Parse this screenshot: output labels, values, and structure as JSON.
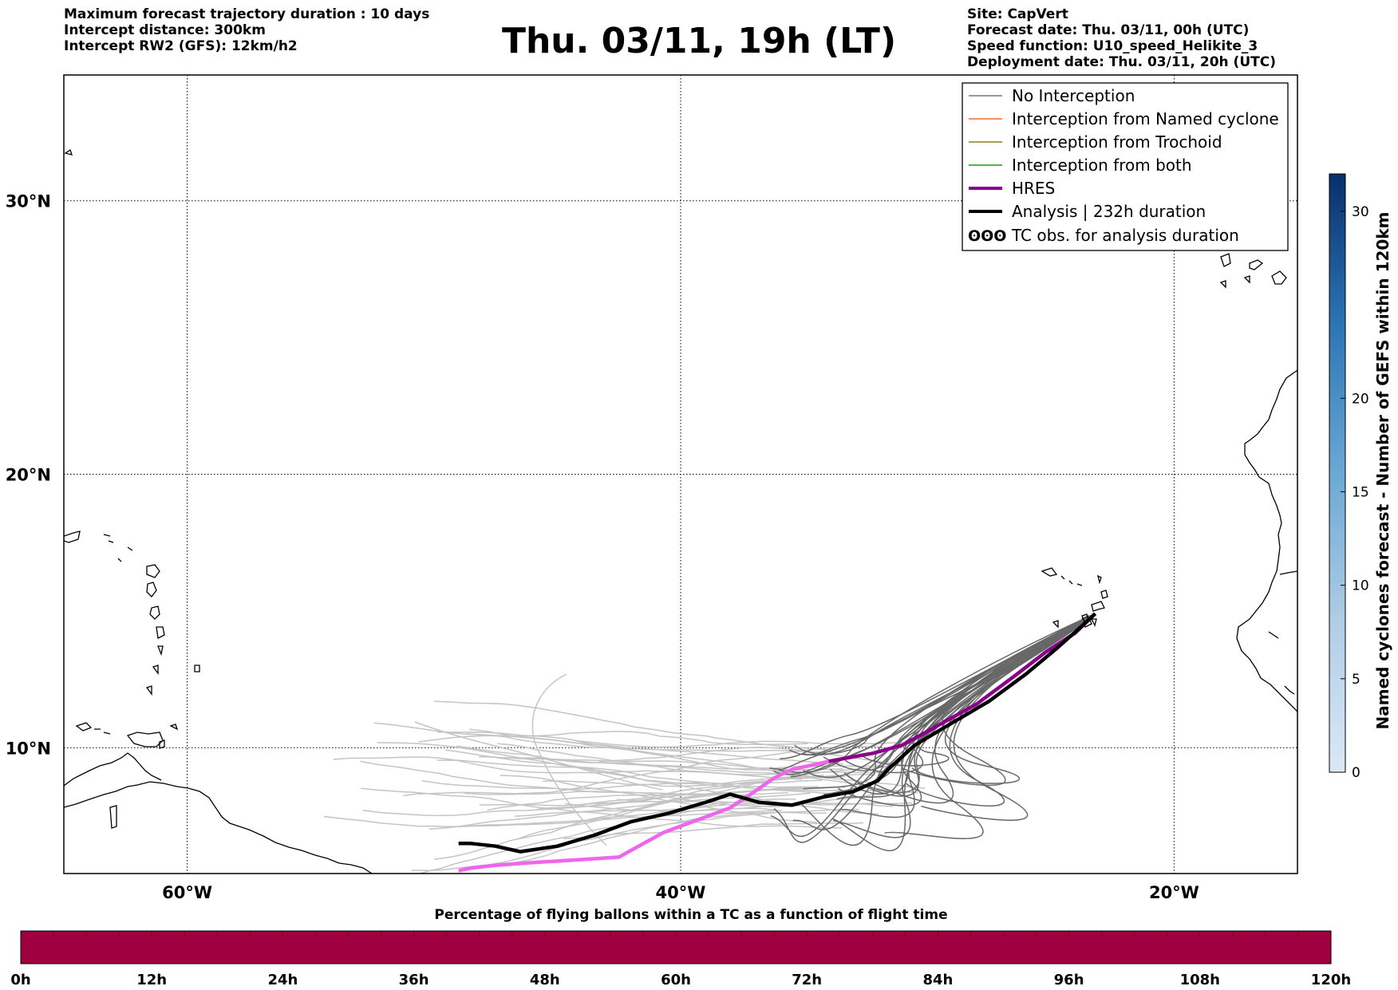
{
  "header": {
    "left": [
      "Maximum forecast trajectory duration : 10 days",
      "Intercept distance: 300km",
      "Intercept RW2 (GFS):  12km/h2"
    ],
    "title": "Thu. 03/11, 19h (LT)",
    "right": [
      "Site: CapVert",
      "Forecast date: Thu. 03/11, 00h (UTC)",
      "Speed function: U10_speed_Helikite_3",
      "Deployment date: Thu. 03/11, 20h (UTC)"
    ]
  },
  "map": {
    "lon_range": [
      -65,
      -15
    ],
    "lat_range": [
      5.4,
      34.6
    ],
    "lat_labels": [
      {
        "lat": 30,
        "text": "30°N"
      },
      {
        "lat": 20,
        "text": "20°N"
      },
      {
        "lat": 10,
        "text": "10°N"
      }
    ],
    "lon_labels": [
      {
        "lon": -60,
        "text": "60°W"
      },
      {
        "lon": -40,
        "text": "40°W"
      },
      {
        "lon": -20,
        "text": "20°W"
      }
    ],
    "launch_site": {
      "lon": -23.2,
      "lat": 14.9
    },
    "hres_track": [
      [
        -23.2,
        14.9
      ],
      [
        -24.0,
        14.2
      ],
      [
        -25.2,
        13.5
      ],
      [
        -26.5,
        12.6
      ],
      [
        -28.0,
        11.6
      ],
      [
        -29.6,
        10.8
      ],
      [
        -31.0,
        10.1
      ],
      [
        -32.2,
        9.8
      ],
      [
        -34.0,
        9.5
      ],
      [
        -35.5,
        9.2
      ],
      [
        -36.2,
        8.9
      ],
      [
        -37.0,
        8.4
      ],
      [
        -38.0,
        7.8
      ],
      [
        -39.5,
        7.3
      ],
      [
        -40.7,
        6.9
      ],
      [
        -42.5,
        6.0
      ],
      [
        -44.2,
        5.9
      ],
      [
        -46.0,
        5.8
      ],
      [
        -47.5,
        5.7
      ],
      [
        -48.5,
        5.6
      ],
      [
        -49.0,
        5.5
      ]
    ],
    "analysis_track": [
      [
        -23.2,
        14.9
      ],
      [
        -23.8,
        14.4
      ],
      [
        -24.8,
        13.6
      ],
      [
        -26.0,
        12.7
      ],
      [
        -27.5,
        11.7
      ],
      [
        -29.2,
        10.8
      ],
      [
        -30.5,
        10.1
      ],
      [
        -31.6,
        9.2
      ],
      [
        -32.0,
        8.8
      ],
      [
        -33.0,
        8.4
      ],
      [
        -34.2,
        8.2
      ],
      [
        -35.5,
        7.9
      ],
      [
        -36.8,
        8.0
      ],
      [
        -38.0,
        8.3
      ],
      [
        -39.0,
        8.0
      ],
      [
        -40.5,
        7.6
      ],
      [
        -42.0,
        7.3
      ],
      [
        -43.5,
        6.8
      ],
      [
        -45.0,
        6.4
      ],
      [
        -46.5,
        6.2
      ],
      [
        -47.5,
        6.4
      ],
      [
        -48.5,
        6.5
      ],
      [
        -49.0,
        6.5
      ]
    ]
  },
  "legend": {
    "items": [
      {
        "label": "No Interception",
        "color": "#777777",
        "width": 1.5
      },
      {
        "label": "Interception from Named cyclone",
        "color": "#ff6a2a",
        "width": 1.5
      },
      {
        "label": "Interception from Trochoid",
        "color": "#8c8010",
        "width": 1.5
      },
      {
        "label": "Interception from both",
        "color": "#1a9a1a",
        "width": 1.5
      },
      {
        "label": "HRES",
        "color": "#8b008b",
        "width": 4
      },
      {
        "label": "Analysis | 232h duration",
        "color": "#000000",
        "width": 4
      }
    ],
    "tc_label": "TC obs. for analysis duration"
  },
  "colorbar_vertical": {
    "label": "Named cyclones forecast - Number of GEFS within 120km",
    "min": 0,
    "max": 32,
    "ticks": [
      0,
      5,
      10,
      15,
      20,
      30
    ],
    "color_low": "#dbe8f6",
    "color_high": "#08306b"
  },
  "colorbar_horizontal": {
    "title": "Percentage of flying ballons within a TC as a function of flight time",
    "color": "#9e0040",
    "ticks": [
      "0h",
      "12h",
      "24h",
      "36h",
      "48h",
      "60h",
      "72h",
      "84h",
      "96h",
      "108h",
      "120h"
    ]
  }
}
